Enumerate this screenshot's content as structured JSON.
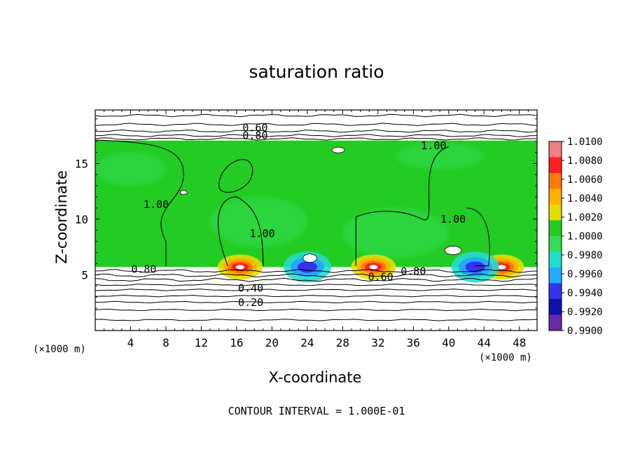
{
  "chart_data": {
    "type": "heatmap",
    "title": "saturation ratio",
    "xlabel": "X-coordinate",
    "ylabel": "Z-coordinate",
    "x_unit": "(×1000 m)",
    "xlim": [
      0,
      50
    ],
    "ylim": [
      0,
      19.8
    ],
    "x_ticks": [
      4,
      8,
      12,
      16,
      20,
      24,
      28,
      32,
      36,
      40,
      44,
      48
    ],
    "y_ticks": [
      5,
      10,
      15
    ],
    "colorbar": {
      "labels": [
        "1.0100",
        "1.0080",
        "1.0060",
        "1.0040",
        "1.0020",
        "1.0000",
        "0.9980",
        "0.9960",
        "0.9940",
        "0.9920",
        "0.9900"
      ],
      "colors": [
        "#f08080",
        "#ff2020",
        "#ff7a00",
        "#ffb000",
        "#e0e000",
        "#22cc22",
        "#33dd55",
        "#22ddcc",
        "#22aaff",
        "#3333ee",
        "#1010aa",
        "#6a2aa8"
      ]
    },
    "contour_labels": [
      {
        "value": "0.60",
        "x": 18.1,
        "z": 18.2
      },
      {
        "value": "0.80",
        "x": 18.1,
        "z": 17.5
      },
      {
        "value": "1.00",
        "x": 38.3,
        "z": 16.6
      },
      {
        "value": "1.00",
        "x": 6.9,
        "z": 11.3
      },
      {
        "value": "1.00",
        "x": 18.9,
        "z": 8.7
      },
      {
        "value": "1.00",
        "x": 40.5,
        "z": 10.0
      },
      {
        "value": "0.80",
        "x": 5.5,
        "z": 5.5
      },
      {
        "value": "0.80",
        "x": 36.0,
        "z": 5.3
      },
      {
        "value": "0.60",
        "x": 32.3,
        "z": 4.8
      },
      {
        "value": "0.40",
        "x": 17.6,
        "z": 3.8
      },
      {
        "value": "0.20",
        "x": 17.6,
        "z": 2.5
      }
    ],
    "contour_levels_upper": [
      19.3,
      18.5,
      17.9,
      17.5,
      17.2
    ],
    "contour_levels_lower": [
      5.35,
      4.95,
      4.55,
      4.1,
      3.65,
      3.1,
      2.55,
      1.85,
      0.95
    ],
    "hotspots_high": [
      16.4,
      31.5,
      46.0
    ],
    "hotspots_low": [
      24.0,
      43.0
    ]
  },
  "footnote": "CONTOUR INTERVAL = 1.000E-01"
}
